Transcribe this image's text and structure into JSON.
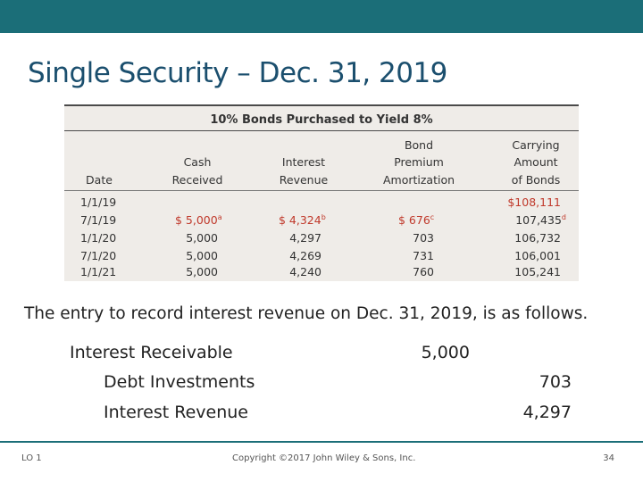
{
  "slide": {
    "title": "Single Security – Dec. 31, 2019",
    "narrative": "The entry to record interest revenue on Dec. 31, 2019, is as follows.",
    "accent_color": "#1b6e78"
  },
  "table": {
    "caption": "10% Bonds Purchased to Yield 8%",
    "headers": {
      "date": [
        "Date"
      ],
      "cash": [
        "Cash",
        "Received"
      ],
      "interest": [
        "Interest",
        "Revenue"
      ],
      "premium": [
        "Bond",
        "Premium",
        "Amortization"
      ],
      "carrying": [
        "Carrying",
        "Amount",
        "of Bonds"
      ]
    },
    "rows": [
      {
        "date": "1/1/19",
        "cash": "",
        "interest": "",
        "premium": "",
        "carrying": "$108,111"
      },
      {
        "date": "7/1/19",
        "cash": "$ 5,000",
        "interest": "$ 4,324",
        "premium": "$ 676",
        "carrying": "107,435"
      },
      {
        "date": "1/1/20",
        "cash": "5,000",
        "interest": "4,297",
        "premium": "703",
        "carrying": "106,732"
      },
      {
        "date": "7/1/20",
        "cash": "5,000",
        "interest": "4,269",
        "premium": "731",
        "carrying": "106,001"
      },
      {
        "date": "1/1/21",
        "cash": "5,000",
        "interest": "4,240",
        "premium": "760",
        "carrying": "105,241"
      }
    ],
    "footnotes": {
      "cash": "a",
      "interest": "b",
      "premium": "c",
      "carrying": "d"
    }
  },
  "journal": {
    "debit_account": "Interest Receivable",
    "debit_amount": "5,000",
    "credits": [
      {
        "account": "Debt Investments",
        "amount": "703"
      },
      {
        "account": "Interest Revenue",
        "amount": "4,297"
      }
    ]
  },
  "footer": {
    "objective": "LO 1",
    "copyright": "Copyright ©2017 John Wiley & Sons, Inc.",
    "page": "34"
  }
}
